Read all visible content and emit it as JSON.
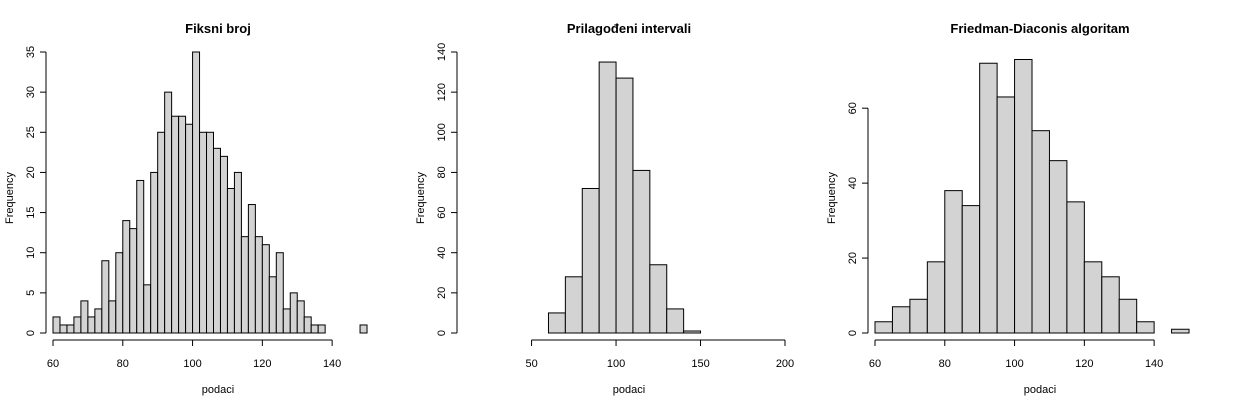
{
  "chart_data": [
    {
      "type": "bar",
      "title": "Fiksni broj",
      "xlabel": "podaci",
      "ylabel": "Frequency",
      "xlim": [
        60,
        152
      ],
      "ylim": [
        0,
        35
      ],
      "x_ticks": [
        60,
        80,
        100,
        120,
        140
      ],
      "y_ticks": [
        0,
        5,
        10,
        15,
        20,
        25,
        30,
        35
      ],
      "bins": [
        {
          "x0": 60,
          "x1": 62,
          "count": 2
        },
        {
          "x0": 62,
          "x1": 64,
          "count": 1
        },
        {
          "x0": 64,
          "x1": 66,
          "count": 1
        },
        {
          "x0": 66,
          "x1": 68,
          "count": 2
        },
        {
          "x0": 68,
          "x1": 70,
          "count": 4
        },
        {
          "x0": 70,
          "x1": 72,
          "count": 2
        },
        {
          "x0": 72,
          "x1": 74,
          "count": 3
        },
        {
          "x0": 74,
          "x1": 76,
          "count": 9
        },
        {
          "x0": 76,
          "x1": 78,
          "count": 4
        },
        {
          "x0": 78,
          "x1": 80,
          "count": 10
        },
        {
          "x0": 80,
          "x1": 82,
          "count": 14
        },
        {
          "x0": 82,
          "x1": 84,
          "count": 13
        },
        {
          "x0": 84,
          "x1": 86,
          "count": 19
        },
        {
          "x0": 86,
          "x1": 88,
          "count": 6
        },
        {
          "x0": 88,
          "x1": 90,
          "count": 20
        },
        {
          "x0": 90,
          "x1": 92,
          "count": 25
        },
        {
          "x0": 92,
          "x1": 94,
          "count": 30
        },
        {
          "x0": 94,
          "x1": 96,
          "count": 27
        },
        {
          "x0": 96,
          "x1": 98,
          "count": 27
        },
        {
          "x0": 98,
          "x1": 100,
          "count": 26
        },
        {
          "x0": 100,
          "x1": 102,
          "count": 35
        },
        {
          "x0": 102,
          "x1": 104,
          "count": 25
        },
        {
          "x0": 104,
          "x1": 106,
          "count": 25
        },
        {
          "x0": 106,
          "x1": 108,
          "count": 23
        },
        {
          "x0": 108,
          "x1": 110,
          "count": 22
        },
        {
          "x0": 110,
          "x1": 112,
          "count": 18
        },
        {
          "x0": 112,
          "x1": 114,
          "count": 20
        },
        {
          "x0": 114,
          "x1": 116,
          "count": 12
        },
        {
          "x0": 116,
          "x1": 118,
          "count": 16
        },
        {
          "x0": 118,
          "x1": 120,
          "count": 12
        },
        {
          "x0": 120,
          "x1": 122,
          "count": 11
        },
        {
          "x0": 122,
          "x1": 124,
          "count": 7
        },
        {
          "x0": 124,
          "x1": 126,
          "count": 10
        },
        {
          "x0": 126,
          "x1": 128,
          "count": 3
        },
        {
          "x0": 128,
          "x1": 130,
          "count": 5
        },
        {
          "x0": 130,
          "x1": 132,
          "count": 4
        },
        {
          "x0": 132,
          "x1": 134,
          "count": 2
        },
        {
          "x0": 134,
          "x1": 136,
          "count": 1
        },
        {
          "x0": 136,
          "x1": 138,
          "count": 1
        },
        {
          "x0": 148,
          "x1": 150,
          "count": 1
        }
      ]
    },
    {
      "type": "bar",
      "title": "Prilagođeni intervali",
      "xlabel": "podaci",
      "ylabel": "Frequency",
      "xlim": [
        10,
        200
      ],
      "ylim": [
        0,
        140
      ],
      "x_ticks": [
        50,
        100,
        150,
        200
      ],
      "y_ticks": [
        0,
        20,
        40,
        60,
        80,
        100,
        120,
        140
      ],
      "bins": [
        {
          "x0": 10,
          "x1": 20,
          "count": 0
        },
        {
          "x0": 20,
          "x1": 30,
          "count": 0
        },
        {
          "x0": 30,
          "x1": 40,
          "count": 0
        },
        {
          "x0": 40,
          "x1": 50,
          "count": 0
        },
        {
          "x0": 50,
          "x1": 60,
          "count": 0
        },
        {
          "x0": 60,
          "x1": 70,
          "count": 10
        },
        {
          "x0": 70,
          "x1": 80,
          "count": 28
        },
        {
          "x0": 80,
          "x1": 90,
          "count": 72
        },
        {
          "x0": 90,
          "x1": 100,
          "count": 135
        },
        {
          "x0": 100,
          "x1": 110,
          "count": 127
        },
        {
          "x0": 110,
          "x1": 120,
          "count": 81
        },
        {
          "x0": 120,
          "x1": 130,
          "count": 34
        },
        {
          "x0": 130,
          "x1": 140,
          "count": 12
        },
        {
          "x0": 140,
          "x1": 150,
          "count": 1
        },
        {
          "x0": 150,
          "x1": 160,
          "count": 0
        },
        {
          "x0": 160,
          "x1": 170,
          "count": 0
        },
        {
          "x0": 170,
          "x1": 180,
          "count": 0
        },
        {
          "x0": 180,
          "x1": 190,
          "count": 0
        },
        {
          "x0": 190,
          "x1": 200,
          "count": 0
        }
      ]
    },
    {
      "type": "bar",
      "title": "Friedman-Diaconis algoritam",
      "xlabel": "podaci",
      "ylabel": "Frequency",
      "xlim": [
        60,
        152
      ],
      "ylim": [
        0,
        75
      ],
      "x_ticks": [
        60,
        80,
        100,
        120,
        140
      ],
      "y_ticks": [
        0,
        20,
        40,
        60
      ],
      "bins": [
        {
          "x0": 60,
          "x1": 65,
          "count": 3
        },
        {
          "x0": 65,
          "x1": 70,
          "count": 7
        },
        {
          "x0": 70,
          "x1": 75,
          "count": 9
        },
        {
          "x0": 75,
          "x1": 80,
          "count": 19
        },
        {
          "x0": 80,
          "x1": 85,
          "count": 38
        },
        {
          "x0": 85,
          "x1": 90,
          "count": 34
        },
        {
          "x0": 90,
          "x1": 95,
          "count": 72
        },
        {
          "x0": 95,
          "x1": 100,
          "count": 63
        },
        {
          "x0": 100,
          "x1": 105,
          "count": 73
        },
        {
          "x0": 105,
          "x1": 110,
          "count": 54
        },
        {
          "x0": 110,
          "x1": 115,
          "count": 46
        },
        {
          "x0": 115,
          "x1": 120,
          "count": 35
        },
        {
          "x0": 120,
          "x1": 125,
          "count": 19
        },
        {
          "x0": 125,
          "x1": 130,
          "count": 15
        },
        {
          "x0": 130,
          "x1": 135,
          "count": 9
        },
        {
          "x0": 135,
          "x1": 140,
          "count": 3
        },
        {
          "x0": 140,
          "x1": 145,
          "count": 0
        },
        {
          "x0": 145,
          "x1": 150,
          "count": 1
        }
      ]
    }
  ]
}
